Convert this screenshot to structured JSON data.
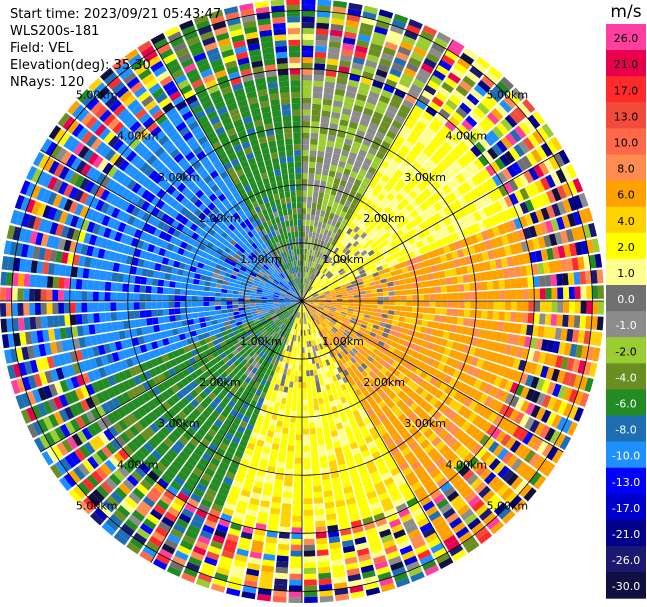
{
  "header": {
    "start_time": "Start time: 2023/09/21 05:43:47",
    "instrument": "WLS200s-181",
    "field": "Field: VEL",
    "elevation": "Elevation(deg): 35.30",
    "nrays": "NRays: 120"
  },
  "chart_data": {
    "type": "heatmap",
    "subtype": "polar-ppi",
    "nrays": 120,
    "range_unit": "km",
    "range_max_km": 5.2,
    "range_ring_labels": [
      "1.00km",
      "2.00km",
      "3.00km",
      "4.00km",
      "5.00km"
    ],
    "range_ring_values_km": [
      1,
      2,
      3,
      4,
      5
    ],
    "colorbar": {
      "unit": "m/s",
      "tick_labels": [
        "26.0",
        "21.0",
        "17.0",
        "13.0",
        "10.0",
        "8.0",
        "6.0",
        "4.0",
        "2.0",
        "1.0",
        "0.0",
        "-1.0",
        "-2.0",
        "-4.0",
        "-6.0",
        "-8.0",
        "-10.0",
        "-13.0",
        "-17.0",
        "-21.0",
        "-26.0",
        "-30.0"
      ],
      "colors": [
        "#ff3fa0",
        "#e8004e",
        "#ff2a2a",
        "#f24b3c",
        "#ff6848",
        "#ff8c50",
        "#ffa200",
        "#ffd200",
        "#ffff00",
        "#ffff90",
        "#707070",
        "#8c8c8c",
        "#9acd32",
        "#6b8e23",
        "#228b22",
        "#1e6eb4",
        "#1e90ff",
        "#0000ff",
        "#0000cd",
        "#00008b",
        "#191970",
        "#101040"
      ]
    },
    "velocity_sectors": [
      {
        "azimuth_from": 0,
        "azimuth_to": 30,
        "velocity": -1.5
      },
      {
        "azimuth_from": 30,
        "azimuth_to": 70,
        "velocity": 2.5
      },
      {
        "azimuth_from": 70,
        "azimuth_to": 150,
        "velocity": 7.0
      },
      {
        "azimuth_from": 150,
        "azimuth_to": 200,
        "velocity": 3.0
      },
      {
        "azimuth_from": 200,
        "azimuth_to": 250,
        "velocity": -5.0
      },
      {
        "azimuth_from": 250,
        "azimuth_to": 330,
        "velocity": -9.0
      },
      {
        "azimuth_from": 330,
        "azimuth_to": 360,
        "velocity": -5.0
      }
    ]
  }
}
